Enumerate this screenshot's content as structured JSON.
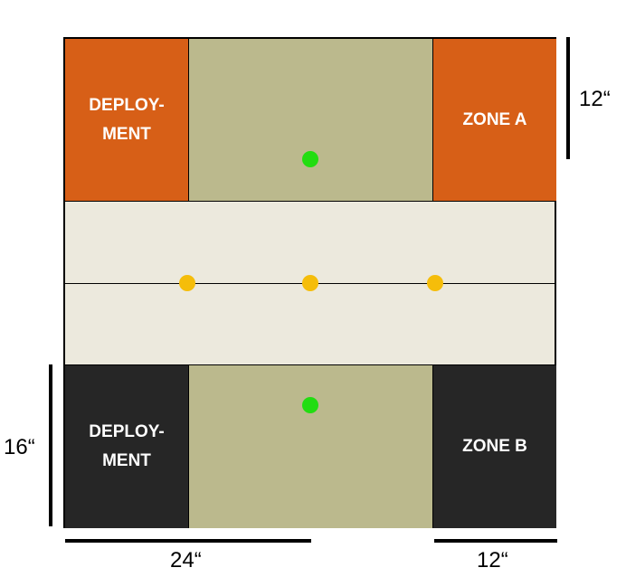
{
  "zones": {
    "top_left": {
      "label": "DEPLOY-\nMENT"
    },
    "top_right": {
      "label": "ZONE A"
    },
    "bottom_left": {
      "label": "DEPLOY-\nMENT"
    },
    "bottom_right": {
      "label": "ZONE B"
    }
  },
  "measurements": {
    "top_right_height": "12“",
    "bottom_left_height": "16“",
    "bottom_width_left": "24“",
    "bottom_width_right": "12“"
  },
  "colors": {
    "player_a": "#d75f17",
    "player_b": "#262626",
    "no_mans_land": "#bbb98d",
    "center_band": "#ece9dd",
    "objective_green": "#22dd11",
    "objective_gold": "#f5bd0a"
  },
  "objectives": {
    "green_count": 2,
    "gold_count": 3
  }
}
